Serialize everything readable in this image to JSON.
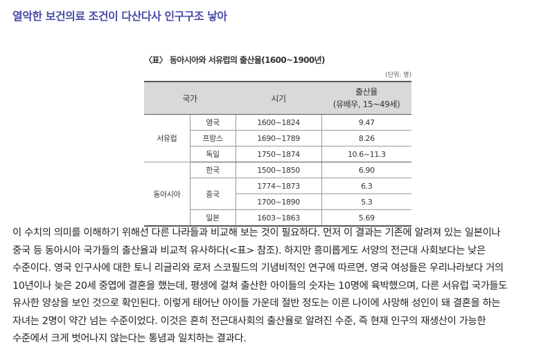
{
  "headline": "열악한 보건의료 조건이 다산다사 인구구조 낳아",
  "table": {
    "caption": "〈표〉 동아시아와 서유럽의 출산율(1600~1900년)",
    "unit": "(단위: 명)",
    "headers": {
      "country": "국가",
      "period": "시기",
      "rate_line1": "출산율",
      "rate_line2": "(유배우, 15~49세)"
    },
    "groups": {
      "west": "서유럽",
      "east": "동아시아"
    },
    "rows": {
      "uk": {
        "country": "영국",
        "period": "1600~1824",
        "rate": "9.47"
      },
      "fr": {
        "country": "프랑스",
        "period": "1690~1789",
        "rate": "8.26"
      },
      "de": {
        "country": "독일",
        "period": "1750~1874",
        "rate": "10.6~11.3"
      },
      "kr": {
        "country": "한국",
        "period": "1500~1850",
        "rate": "6.90"
      },
      "cn1": {
        "country": "중국",
        "period": "1774~1873",
        "rate": "6.3"
      },
      "cn2": {
        "period": "1700~1890",
        "rate": "5.3"
      },
      "jp": {
        "country": "일본",
        "period": "1603~1863",
        "rate": "5.69"
      }
    }
  },
  "paragraph": [
    "이 수치의 의미를 이해하기 위해선 다른 나라들과 비교해 보는 것이 필요하다. 먼저 이 결과는 기존에 알려져 있는 일본이나",
    "중국 등 동아시아 국가들의 출산율과 비교적 유사하다(<표> 참조). 하지만 흥미롭게도 서양의 전근대 사회보다는 낮은",
    "수준이다. 영국 인구사에 대한 토니 리글리와 로저 스코필드의 기념비적인 연구에 따르면, 영국 여성들은 우리나라보다 거의",
    "10년이나 늦은 20세 중엽에 결혼을 했는데, 평생에 걸쳐 출산한 아이들의 숫자는 10명에 육박했으며, 다른 서유럽 국가들도",
    "유사한 양상을 보인 것으로 확인된다. 이렇게 태어난 아이들 가운데 절반 정도는 이른 나이에 사망해 성인이 돼 결혼을 하는",
    "자녀는 2명이 약간 넘는 수준이었다. 이것은 흔히 전근대사회의 출산율로 알려진 수준, 즉 현재 인구의 재생산이 가능한",
    "수준에서 크게 벗어나지 않는다는 통념과 일치하는 결과다."
  ]
}
